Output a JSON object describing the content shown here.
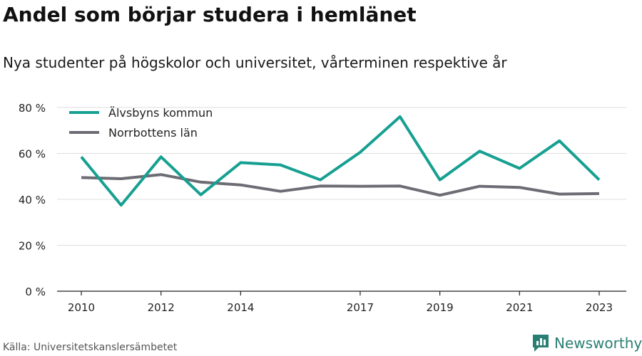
{
  "title": "Andel som börjar studera i hemlänet",
  "subtitle": "Nya studenter på högskolor och universitet, vårterminen respektive år",
  "source": "Källa: Universitetskanslersämbetet",
  "brand": "Newsworthy",
  "colors": {
    "accent": "#16a091",
    "secondary": "#6c6c74",
    "brand": "#2a7f73"
  },
  "chart_data": {
    "type": "line",
    "title": "Andel som börjar studera i hemlänet",
    "subtitle": "Nya studenter på högskolor och universitet, vårterminen respektive år",
    "x": [
      2010,
      2011,
      2012,
      2013,
      2014,
      2015,
      2016,
      2017,
      2018,
      2019,
      2020,
      2021,
      2022,
      2023
    ],
    "x_ticks": [
      "2010",
      "2012",
      "2014",
      "2017",
      "2019",
      "2021",
      "2023"
    ],
    "y_ticks": [
      "0 %",
      "20 %",
      "40 %",
      "60 %",
      "80 %"
    ],
    "ylim": [
      0,
      80
    ],
    "grid": true,
    "legend_position": "top-left",
    "series": [
      {
        "name": "Älvsbyns kommun",
        "color": "#16a091",
        "values": [
          58.5,
          37.5,
          58.5,
          42.0,
          56.0,
          55.0,
          48.5,
          60.5,
          76.0,
          48.5,
          61.0,
          53.5,
          65.5,
          48.5
        ]
      },
      {
        "name": "Norrbottens län",
        "color": "#6c6c74",
        "values": [
          49.5,
          49.0,
          50.8,
          47.5,
          46.3,
          43.5,
          45.8,
          45.7,
          45.8,
          41.8,
          45.7,
          45.2,
          42.3,
          42.5
        ]
      }
    ]
  }
}
